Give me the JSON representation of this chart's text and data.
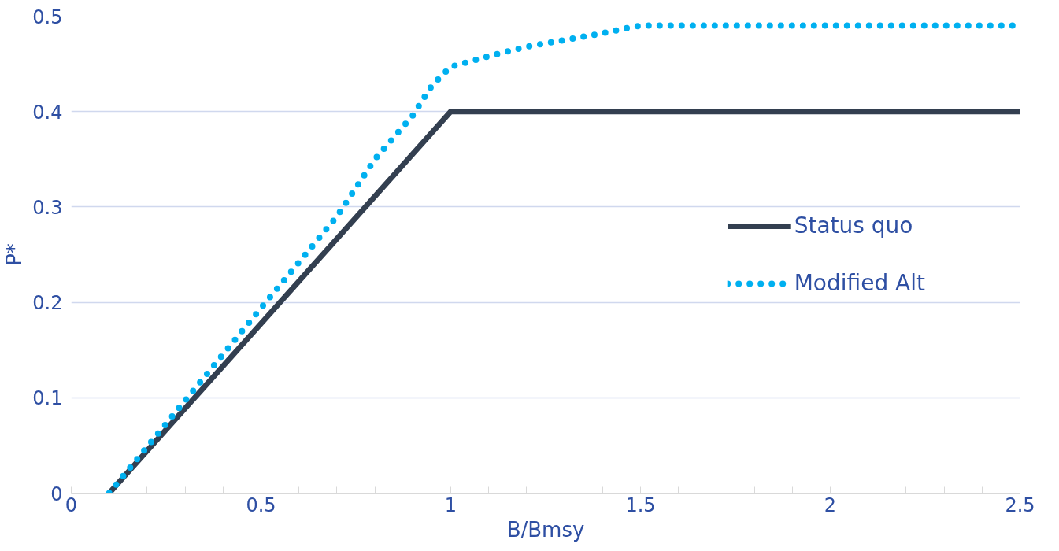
{
  "chart_data": {
    "type": "line",
    "xlabel": "B/Bmsy",
    "ylabel": "P*",
    "xlim": [
      0,
      2.5
    ],
    "ylim": [
      0,
      0.5
    ],
    "xticks": [
      0,
      {
        "value": 0.1,
        "label": null
      },
      {
        "value": 0.2,
        "label": null
      },
      {
        "value": 0.3,
        "label": null
      },
      {
        "value": 0.4,
        "label": null
      },
      0.5,
      {
        "value": 0.6,
        "label": null
      },
      {
        "value": 0.7,
        "label": null
      },
      {
        "value": 0.8,
        "label": null
      },
      {
        "value": 0.9,
        "label": null
      },
      1,
      {
        "value": 1.1,
        "label": null
      },
      {
        "value": 1.2,
        "label": null
      },
      {
        "value": 1.3,
        "label": null
      },
      {
        "value": 1.4,
        "label": null
      },
      1.5,
      {
        "value": 1.6,
        "label": null
      },
      {
        "value": 1.7,
        "label": null
      },
      {
        "value": 1.8,
        "label": null
      },
      {
        "value": 1.9,
        "label": null
      },
      2,
      {
        "value": 2.1,
        "label": null
      },
      {
        "value": 2.2,
        "label": null
      },
      {
        "value": 2.3,
        "label": null
      },
      {
        "value": 2.4,
        "label": null
      },
      2.5
    ],
    "yticks": [
      0,
      0.1,
      0.2,
      0.3,
      0.4,
      0.5
    ],
    "grid": "y",
    "legend": "right",
    "series": [
      {
        "name": "Status quo",
        "color": "#333f50",
        "line_style": "solid",
        "x": [
          0.1,
          1,
          2.5
        ],
        "values": [
          0,
          0.4,
          0.4
        ]
      },
      {
        "name": "Modified Alt",
        "color": "#00b0f0",
        "line_style": "dotted",
        "x": [
          0.1,
          0.3,
          0.5,
          0.7,
          0.8,
          0.9,
          0.95,
          1.0,
          1.1,
          1.2,
          1.3,
          1.4,
          1.47,
          1.5,
          2.5
        ],
        "values": [
          0,
          0.097,
          0.194,
          0.29,
          0.35,
          0.396,
          0.427,
          0.447,
          0.458,
          0.468,
          0.475,
          0.482,
          0.488,
          0.49,
          0.49
        ]
      }
    ]
  }
}
